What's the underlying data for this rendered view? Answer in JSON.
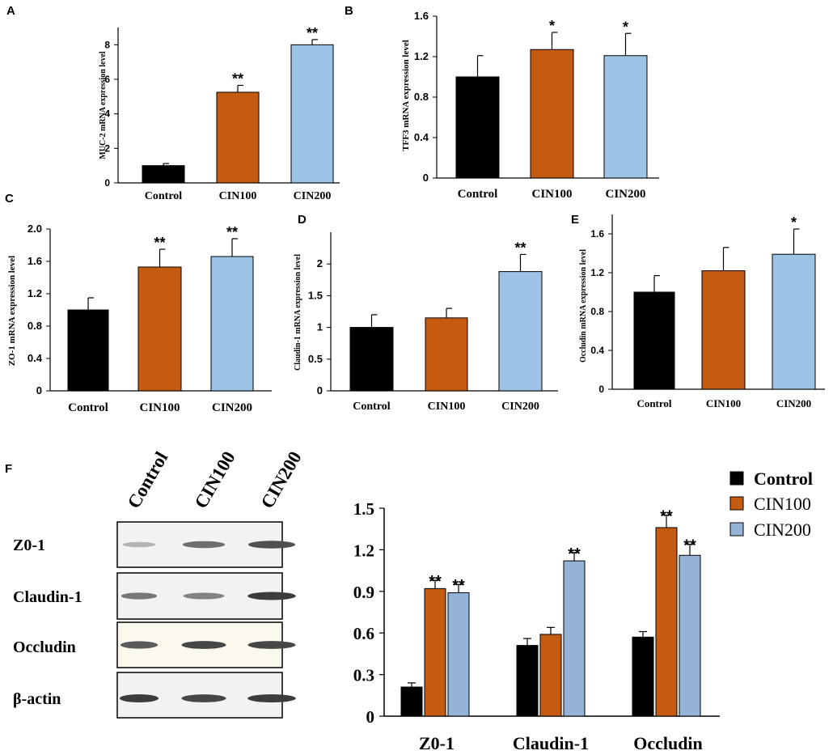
{
  "colors": {
    "control": "#000000",
    "cin100": "#C55A11",
    "cin200": "#9DC3E6",
    "cin200_f": "#95B3D7",
    "axis": "#000000"
  },
  "chart_data": [
    {
      "id": "A",
      "panel_label": "A",
      "type": "bar",
      "categories": [
        "Control",
        "CIN100",
        "CIN200"
      ],
      "values": [
        1.0,
        5.25,
        8.0
      ],
      "errors": [
        0.12,
        0.4,
        0.3
      ],
      "significance": [
        "",
        "**",
        "**"
      ],
      "ylabel": "MUC-2 mRNA expression level",
      "ylim": [
        0,
        9
      ],
      "yticks": [
        0,
        2,
        4,
        6,
        8
      ],
      "ytick_labels": [
        "0",
        "2",
        "4",
        "6",
        "8"
      ]
    },
    {
      "id": "B",
      "panel_label": "B",
      "type": "bar",
      "categories": [
        "Control",
        "CIN100",
        "CIN200"
      ],
      "values": [
        1.0,
        1.27,
        1.21
      ],
      "errors": [
        0.21,
        0.17,
        0.22
      ],
      "significance": [
        "",
        "*",
        "*"
      ],
      "ylabel": "TFF3 mRNA expression level",
      "ylim": [
        0,
        1.6
      ],
      "yticks": [
        0,
        0.4,
        0.8,
        1.2,
        1.6
      ],
      "ytick_labels": [
        "0",
        "0.4",
        "0.8",
        "1.2",
        "1.6"
      ]
    },
    {
      "id": "C",
      "panel_label": "C",
      "type": "bar",
      "categories": [
        "Control",
        "CIN100",
        "CIN200"
      ],
      "values": [
        1.0,
        1.53,
        1.66
      ],
      "errors": [
        0.15,
        0.22,
        0.22
      ],
      "significance": [
        "",
        "**",
        "**"
      ],
      "ylabel": "ZO-1 mRNA expression level",
      "ylim": [
        0,
        2.0
      ],
      "yticks": [
        0,
        0.4,
        0.8,
        1.2,
        1.6,
        2.0
      ],
      "ytick_labels": [
        "0",
        "0.4",
        "0.8",
        "1.2",
        "1.6",
        "2.0"
      ]
    },
    {
      "id": "D",
      "panel_label": "D",
      "type": "bar",
      "categories": [
        "Control",
        "CIN100",
        "CIN200"
      ],
      "values": [
        1.0,
        1.15,
        1.88
      ],
      "errors": [
        0.2,
        0.15,
        0.27
      ],
      "significance": [
        "",
        "",
        "**"
      ],
      "ylabel": "Claudin-1 mRNA expression level",
      "ylim": [
        0,
        2.5
      ],
      "yticks": [
        0,
        0.5,
        1,
        1.5,
        2
      ],
      "ytick_labels": [
        "0",
        "0.5",
        "1",
        "1.5",
        "2"
      ]
    },
    {
      "id": "E",
      "panel_label": "E",
      "type": "bar",
      "categories": [
        "Control",
        "CIN100",
        "CIN200"
      ],
      "values": [
        1.0,
        1.22,
        1.39
      ],
      "errors": [
        0.17,
        0.24,
        0.26
      ],
      "significance": [
        "",
        "",
        "*"
      ],
      "ylabel": "Occludin mRNA expression level",
      "ylim": [
        0,
        1.8
      ],
      "yticks": [
        0,
        0.4,
        0.8,
        1.2,
        1.6
      ],
      "ytick_labels": [
        "0",
        "0.4",
        "0.8",
        "1.2",
        "1.6"
      ]
    },
    {
      "id": "F",
      "panel_label": "F",
      "type": "bar",
      "categories": [
        "Z0-1",
        "Claudin-1",
        "Occludin"
      ],
      "series": [
        {
          "name": "Control",
          "values": [
            0.21,
            0.51,
            0.57
          ],
          "errors": [
            0.03,
            0.05,
            0.04
          ],
          "significance": [
            "",
            "",
            ""
          ]
        },
        {
          "name": "CIN100",
          "values": [
            0.92,
            0.59,
            1.36
          ],
          "errors": [
            0.06,
            0.05,
            0.09
          ],
          "significance": [
            "**",
            "",
            "**"
          ]
        },
        {
          "name": "CIN200",
          "values": [
            0.89,
            1.12,
            1.16
          ],
          "errors": [
            0.06,
            0.06,
            0.08
          ],
          "significance": [
            "**",
            "**",
            "**"
          ]
        }
      ],
      "ylim": [
        0,
        1.5
      ],
      "yticks": [
        0,
        0.3,
        0.6,
        0.9,
        1.2,
        1.5
      ],
      "ytick_labels": [
        "0",
        "0.3",
        "0.6",
        "0.9",
        "1.2",
        "1.5"
      ],
      "legend": [
        "Control",
        "CIN100",
        "CIN200"
      ],
      "legend_position": "top-right"
    }
  ],
  "western_blot": {
    "columns": [
      "Control",
      "CIN100",
      "CIN200"
    ],
    "rows": [
      {
        "label": "Z0-1",
        "intensity": [
          0.25,
          0.6,
          0.75
        ]
      },
      {
        "label": "Claudin-1",
        "intensity": [
          0.55,
          0.5,
          0.85
        ]
      },
      {
        "label": "Occludin",
        "intensity": [
          0.7,
          0.8,
          0.8
        ]
      },
      {
        "label": "β-actin",
        "intensity": [
          0.85,
          0.8,
          0.85
        ]
      }
    ]
  }
}
